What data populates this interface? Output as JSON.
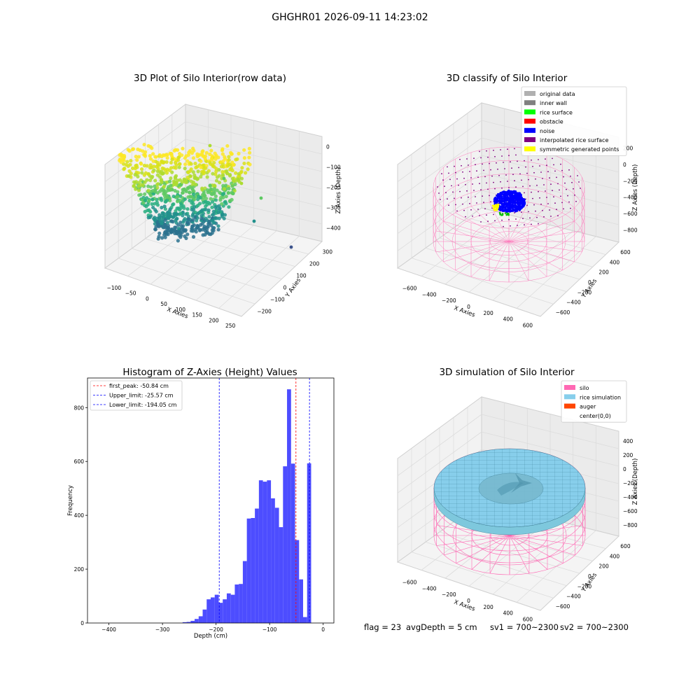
{
  "suptitle": "GHGHR01 2026-09-11 14:23:02",
  "status": {
    "flag": "flag = 23",
    "avg_depth": "avgDepth = 5 cm",
    "sv1": "sv1 = 700~2300",
    "sv2": "sv2 = 700~2300"
  },
  "chart_data": [
    {
      "type": "scatter",
      "title": "3D Plot of Silo Interior(row data)",
      "xlabel": "X Axies",
      "ylabel": "Y Axies",
      "zlabel": "Z Axies (Depth)",
      "xticks": [
        "−100",
        "−50",
        "0",
        "50",
        "100",
        "150",
        "200",
        "250"
      ],
      "yticks": [
        "−200",
        "−100",
        "0",
        "100",
        "200",
        "300"
      ],
      "zticks": [
        "−400",
        "−300",
        "−200",
        "−100",
        "0"
      ],
      "xlim": [
        -130,
        260
      ],
      "ylim": [
        -230,
        320
      ],
      "zlim": [
        -450,
        20
      ],
      "colormap": "viridis"
    },
    {
      "type": "scatter",
      "title": "3D classify of Silo Interior",
      "xlabel": "X Axies",
      "ylabel": "Y Axies",
      "zlabel": "Z Axies (Depth)",
      "xticks": [
        "−600",
        "−400",
        "−200",
        "0",
        "200",
        "400",
        "600"
      ],
      "yticks": [
        "−600",
        "−400",
        "−200",
        "0",
        "200",
        "400",
        "600"
      ],
      "zticks": [
        "−800",
        "−600",
        "−400",
        "−200",
        "0",
        "200"
      ],
      "legend_position": "top-right",
      "legend": [
        {
          "label": "original data",
          "color": "#b0b0b0"
        },
        {
          "label": "inner wall",
          "color": "#808080"
        },
        {
          "label": "rice surface",
          "color": "#00ff00"
        },
        {
          "label": "obstacle",
          "color": "#ff0000"
        },
        {
          "label": "noise",
          "color": "#0000ff"
        },
        {
          "label": "interpolated rice surface",
          "color": "#800080"
        },
        {
          "label": "symmetric generated points",
          "color": "#ffff00"
        }
      ]
    },
    {
      "type": "bar",
      "title": "Histogram of Z-Axies (Height) Values",
      "xlabel": "Depth (cm)",
      "ylabel": "Frequency",
      "xlim": [
        -440,
        20
      ],
      "ylim": [
        0,
        910
      ],
      "xticks": [
        -400,
        -300,
        -200,
        -100,
        0
      ],
      "xtick_labels": [
        "−400",
        "−300",
        "−200",
        "−100",
        "0"
      ],
      "yticks": [
        0,
        200,
        400,
        600,
        800
      ],
      "yticks_labels": [
        "0",
        "200",
        "400",
        "600",
        "800"
      ],
      "bar_color": "#4d4dff",
      "bin_width": 7.5,
      "bins": [
        {
          "x": -262.5,
          "count": 3
        },
        {
          "x": -255,
          "count": 4
        },
        {
          "x": -247.5,
          "count": 8
        },
        {
          "x": -240,
          "count": 15
        },
        {
          "x": -232.5,
          "count": 25
        },
        {
          "x": -225,
          "count": 50
        },
        {
          "x": -217.5,
          "count": 88
        },
        {
          "x": -210,
          "count": 95
        },
        {
          "x": -202.5,
          "count": 105
        },
        {
          "x": -195,
          "count": 75
        },
        {
          "x": -187.5,
          "count": 88
        },
        {
          "x": -180,
          "count": 110
        },
        {
          "x": -172.5,
          "count": 105
        },
        {
          "x": -165,
          "count": 143
        },
        {
          "x": -157.5,
          "count": 145
        },
        {
          "x": -150,
          "count": 230
        },
        {
          "x": -142.5,
          "count": 388
        },
        {
          "x": -135,
          "count": 390
        },
        {
          "x": -127.5,
          "count": 425
        },
        {
          "x": -120,
          "count": 530
        },
        {
          "x": -112.5,
          "count": 525
        },
        {
          "x": -105,
          "count": 530
        },
        {
          "x": -97.5,
          "count": 463
        },
        {
          "x": -90,
          "count": 428
        },
        {
          "x": -82.5,
          "count": 356
        },
        {
          "x": -75,
          "count": 582
        },
        {
          "x": -67.5,
          "count": 868
        },
        {
          "x": -60,
          "count": 592
        },
        {
          "x": -52.5,
          "count": 308
        },
        {
          "x": -45,
          "count": 162
        },
        {
          "x": -37.5,
          "count": 22
        },
        {
          "x": -30,
          "count": 593
        }
      ],
      "lines": [
        {
          "label": "first_peak: -50.84 cm",
          "x": -50.84,
          "color": "#ff0000"
        },
        {
          "label": "Upper_limit: -25.57 cm",
          "x": -25.57,
          "color": "#0000ff"
        },
        {
          "label": "Lower_limit: -194.05 cm",
          "x": -194.05,
          "color": "#0000ff"
        }
      ],
      "legend_position": "top-left"
    },
    {
      "type": "area",
      "title": "3D simulation of Silo Interior",
      "xlabel": "X Axies",
      "ylabel": "Y Axies",
      "zlabel": "Z Axies (Depth)",
      "xticks": [
        "−600",
        "−400",
        "−200",
        "0",
        "200",
        "400",
        "600"
      ],
      "yticks": [
        "−600",
        "−400",
        "−200",
        "0",
        "200",
        "400",
        "600"
      ],
      "zticks": [
        "−800",
        "−600",
        "−400",
        "−200",
        "0",
        "200",
        "400"
      ],
      "legend_position": "top-right",
      "legend": [
        {
          "label": "silo",
          "color": "#ff69b4"
        },
        {
          "label": "rice simulation",
          "color": "#87ceeb"
        },
        {
          "label": "auger",
          "color": "#ff4500"
        },
        {
          "label": "center(0,0)",
          "color": "#ffffff"
        }
      ]
    }
  ]
}
